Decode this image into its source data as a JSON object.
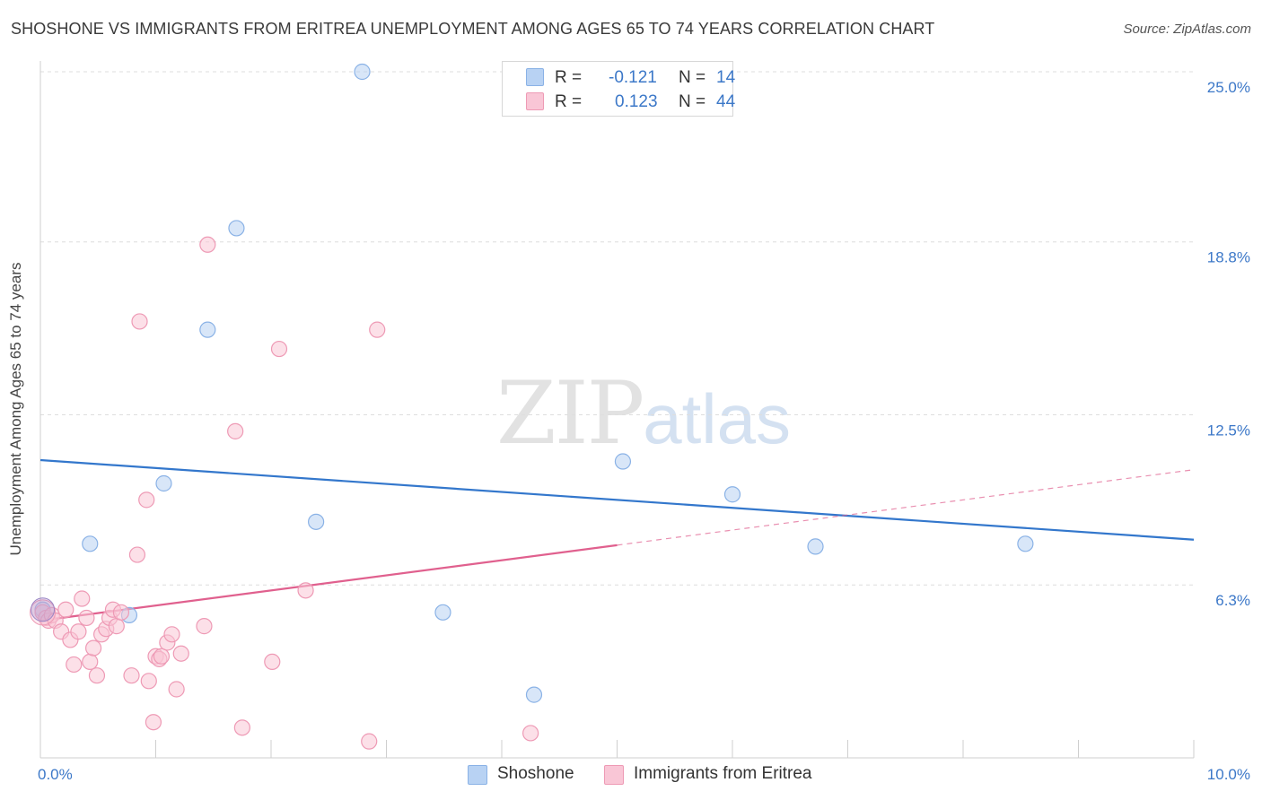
{
  "header": {
    "title": "SHOSHONE VS IMMIGRANTS FROM ERITREA UNEMPLOYMENT AMONG AGES 65 TO 74 YEARS CORRELATION CHART",
    "source": "Source: ZipAtlas.com"
  },
  "watermark": {
    "zip": "ZIP",
    "atlas": "atlas"
  },
  "legend": {
    "rows": [
      {
        "r_label": "R =",
        "r_value": "-0.121",
        "n_label": "N =",
        "n_value": "14"
      },
      {
        "r_label": "R =",
        "r_value": "0.123",
        "n_label": "N =",
        "n_value": "44"
      }
    ]
  },
  "colors": {
    "shoshone_fill": "#b8d2f3",
    "shoshone_stroke": "#8ab2e6",
    "shoshone_line": "#3377cc",
    "eritrea_fill": "#f9c6d6",
    "eritrea_stroke": "#ee9ab5",
    "eritrea_line": "#e0608e",
    "tick_label": "#3c78c8"
  },
  "chart_data": {
    "type": "scatter",
    "title": "SHOSHONE VS IMMIGRANTS FROM ERITREA UNEMPLOYMENT AMONG AGES 65 TO 74 YEARS CORRELATION CHART",
    "xlabel": "",
    "ylabel": "Unemployment Among Ages 65 to 74 years",
    "xlim": [
      0,
      10
    ],
    "ylim": [
      0,
      25
    ],
    "x_tick_labels": [
      "0.0%",
      "10.0%"
    ],
    "y_ticks": [
      6.3,
      12.5,
      18.8,
      25.0
    ],
    "y_tick_labels": [
      "6.3%",
      "12.5%",
      "18.8%",
      "25.0%"
    ],
    "grid": true,
    "legend_placement": "top-center",
    "series": [
      {
        "name": "Shoshone",
        "points": [
          [
            0.02,
            5.4
          ],
          [
            0.43,
            7.8
          ],
          [
            0.77,
            5.2
          ],
          [
            1.07,
            10.0
          ],
          [
            1.45,
            15.6
          ],
          [
            1.7,
            19.3
          ],
          [
            2.39,
            8.6
          ],
          [
            2.79,
            25.0
          ],
          [
            3.49,
            5.3
          ],
          [
            4.28,
            2.3
          ],
          [
            5.05,
            10.8
          ],
          [
            6.0,
            9.6
          ],
          [
            6.72,
            7.7
          ],
          [
            8.54,
            7.8
          ]
        ],
        "trend": {
          "x": [
            0,
            10
          ],
          "y": [
            10.85,
            7.95
          ]
        }
      },
      {
        "name": "Immigrants from Eritrea",
        "points": [
          [
            0.02,
            5.3
          ],
          [
            0.05,
            5.1
          ],
          [
            0.07,
            5.0
          ],
          [
            0.1,
            5.2
          ],
          [
            0.13,
            5.0
          ],
          [
            0.18,
            4.6
          ],
          [
            0.22,
            5.4
          ],
          [
            0.26,
            4.3
          ],
          [
            0.29,
            3.4
          ],
          [
            0.33,
            4.6
          ],
          [
            0.36,
            5.8
          ],
          [
            0.4,
            5.1
          ],
          [
            0.43,
            3.5
          ],
          [
            0.46,
            4.0
          ],
          [
            0.49,
            3.0
          ],
          [
            0.53,
            4.5
          ],
          [
            0.57,
            4.7
          ],
          [
            0.6,
            5.1
          ],
          [
            0.63,
            5.4
          ],
          [
            0.66,
            4.8
          ],
          [
            0.7,
            5.3
          ],
          [
            0.79,
            3.0
          ],
          [
            0.84,
            7.4
          ],
          [
            0.86,
            15.9
          ],
          [
            0.92,
            9.4
          ],
          [
            0.94,
            2.8
          ],
          [
            0.98,
            1.3
          ],
          [
            1.0,
            3.7
          ],
          [
            1.03,
            3.6
          ],
          [
            1.05,
            3.7
          ],
          [
            1.1,
            4.2
          ],
          [
            1.14,
            4.5
          ],
          [
            1.18,
            2.5
          ],
          [
            1.22,
            3.8
          ],
          [
            1.42,
            4.8
          ],
          [
            1.45,
            18.7
          ],
          [
            1.69,
            11.9
          ],
          [
            1.75,
            1.1
          ],
          [
            2.01,
            3.5
          ],
          [
            2.07,
            14.9
          ],
          [
            2.3,
            6.1
          ],
          [
            2.85,
            0.6
          ],
          [
            2.92,
            15.6
          ],
          [
            4.25,
            0.9
          ]
        ],
        "trend": {
          "x": [
            0,
            5.0
          ],
          "y": [
            5.0,
            7.75
          ]
        },
        "trend_extension": {
          "x": [
            5.0,
            10
          ],
          "y": [
            7.75,
            10.5
          ]
        }
      }
    ]
  },
  "bottom_legend": {
    "items": [
      {
        "label": "Shoshone"
      },
      {
        "label": "Immigrants from Eritrea"
      }
    ]
  }
}
